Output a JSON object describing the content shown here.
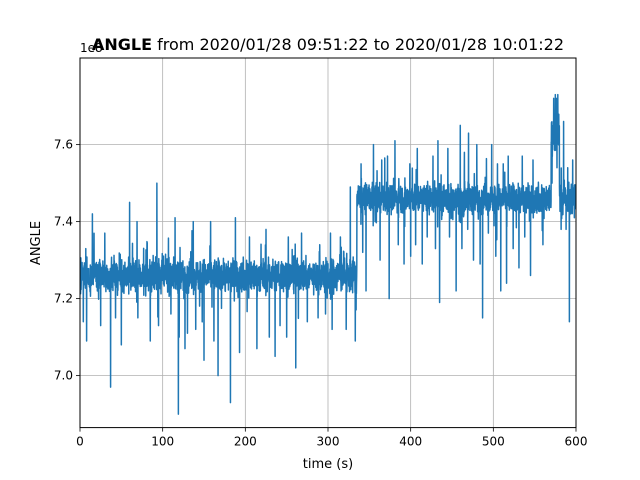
{
  "chart_data": {
    "type": "line",
    "title_bold": "ANGLE",
    "title_rest": " from 2020/01/28 09:51:22 to 2020/01/28 10:01:22",
    "xlabel": "time (s)",
    "ylabel": "ANGLE",
    "offset_label": "1e8",
    "xlim": [
      0,
      600
    ],
    "ylim": [
      6.865,
      7.825
    ],
    "xticks": [
      0,
      100,
      200,
      300,
      400,
      500,
      600
    ],
    "yticks": [
      7.0,
      7.2,
      7.4,
      7.6
    ],
    "grid": true,
    "series": [
      {
        "color": "#1f77b4",
        "segments": [
          {
            "x0": 0,
            "x1": 335,
            "base": 7.26,
            "noise": 0.045,
            "spikes_up": [
              [
                7,
                7.33
              ],
              [
                15,
                7.42
              ],
              [
                30,
                7.37
              ],
              [
                60,
                7.45
              ],
              [
                69,
                7.4
              ],
              [
                85,
                7.44
              ],
              [
                93,
                7.5
              ],
              [
                115,
                7.41
              ],
              [
                137,
                7.4
              ],
              [
                158,
                7.4
              ],
              [
                188,
                7.41
              ],
              [
                205,
                7.36
              ],
              [
                225,
                7.38
              ],
              [
                252,
                7.36
              ],
              [
                268,
                7.37
              ],
              [
                290,
                7.34
              ],
              [
                303,
                7.37
              ],
              [
                315,
                7.36
              ],
              [
                327,
                7.49
              ]
            ],
            "spikes_down": [
              [
                4,
                7.14
              ],
              [
                8,
                7.09
              ],
              [
                25,
                7.13
              ],
              [
                37,
                6.97
              ],
              [
                43,
                7.15
              ],
              [
                50,
                7.08
              ],
              [
                70,
                7.15
              ],
              [
                85,
                7.09
              ],
              [
                95,
                7.13
              ],
              [
                110,
                7.16
              ],
              [
                120,
                7.1
              ],
              [
                119,
                6.9
              ],
              [
                127,
                7.07
              ],
              [
                130,
                7.11
              ],
              [
                140,
                7.12
              ],
              [
                150,
                7.04
              ],
              [
                162,
                7.09
              ],
              [
                167,
                7.0
              ],
              [
                182,
                6.93
              ],
              [
                193,
                7.06
              ],
              [
                214,
                7.07
              ],
              [
                229,
                7.1
              ],
              [
                236,
                7.05
              ],
              [
                242,
                7.13
              ],
              [
                250,
                7.1
              ],
              [
                261,
                7.02
              ],
              [
                275,
                7.14
              ],
              [
                288,
                7.15
              ],
              [
                297,
                7.16
              ],
              [
                305,
                7.12
              ],
              [
                322,
                7.12
              ],
              [
                333,
                7.09
              ]
            ]
          },
          {
            "x0": 335,
            "x1": 570,
            "base": 7.46,
            "noise": 0.04,
            "spikes_up": [
              [
                340,
                7.55
              ],
              [
                355,
                7.6
              ],
              [
                365,
                7.56
              ],
              [
                372,
                7.57
              ],
              [
                381,
                7.61
              ],
              [
                399,
                7.55
              ],
              [
                408,
                7.59
              ],
              [
                420,
                7.61
              ],
              [
                427,
                7.57
              ],
              [
                433,
                7.61
              ],
              [
                445,
                7.59
              ],
              [
                460,
                7.65
              ],
              [
                465,
                7.58
              ],
              [
                470,
                7.63
              ],
              [
                480,
                7.6
              ],
              [
                487,
                7.56
              ],
              [
                498,
                7.6
              ],
              [
                505,
                7.55
              ],
              [
                512,
                7.55
              ],
              [
                518,
                7.57
              ],
              [
                535,
                7.57
              ],
              [
                548,
                7.56
              ]
            ],
            "spikes_down": [
              [
                342,
                7.32
              ],
              [
                346,
                7.22
              ],
              [
                357,
                7.4
              ],
              [
                363,
                7.3
              ],
              [
                374,
                7.2
              ],
              [
                385,
                7.34
              ],
              [
                392,
                7.29
              ],
              [
                400,
                7.31
              ],
              [
                406,
                7.34
              ],
              [
                414,
                7.29
              ],
              [
                420,
                7.36
              ],
              [
                430,
                7.33
              ],
              [
                435,
                7.19
              ],
              [
                447,
                7.36
              ],
              [
                455,
                7.22
              ],
              [
                462,
                7.33
              ],
              [
                469,
                7.38
              ],
              [
                476,
                7.3
              ],
              [
                484,
                7.29
              ],
              [
                487,
                7.15
              ],
              [
                494,
                7.37
              ],
              [
                503,
                7.31
              ],
              [
                509,
                7.22
              ],
              [
                516,
                7.24
              ],
              [
                524,
                7.33
              ],
              [
                531,
                7.28
              ],
              [
                538,
                7.36
              ],
              [
                545,
                7.26
              ],
              [
                560,
                7.34
              ]
            ]
          },
          {
            "x0": 570,
            "x1": 580,
            "base": 7.63,
            "noise": 0.05,
            "spikes_up": [
              [
                573,
                7.72
              ],
              [
                575,
                7.73
              ],
              [
                578,
                7.73
              ]
            ],
            "spikes_down": [
              [
                571,
                7.5
              ],
              [
                577,
                7.54
              ]
            ]
          },
          {
            "x0": 580,
            "x1": 600,
            "base": 7.46,
            "noise": 0.045,
            "spikes_up": [
              [
                585,
                7.66
              ],
              [
                590,
                7.54
              ],
              [
                596,
                7.56
              ]
            ],
            "spikes_down": [
              [
                582,
                7.38
              ],
              [
                588,
                7.38
              ],
              [
                592,
                7.14
              ],
              [
                598,
                7.41
              ]
            ]
          }
        ]
      }
    ]
  }
}
